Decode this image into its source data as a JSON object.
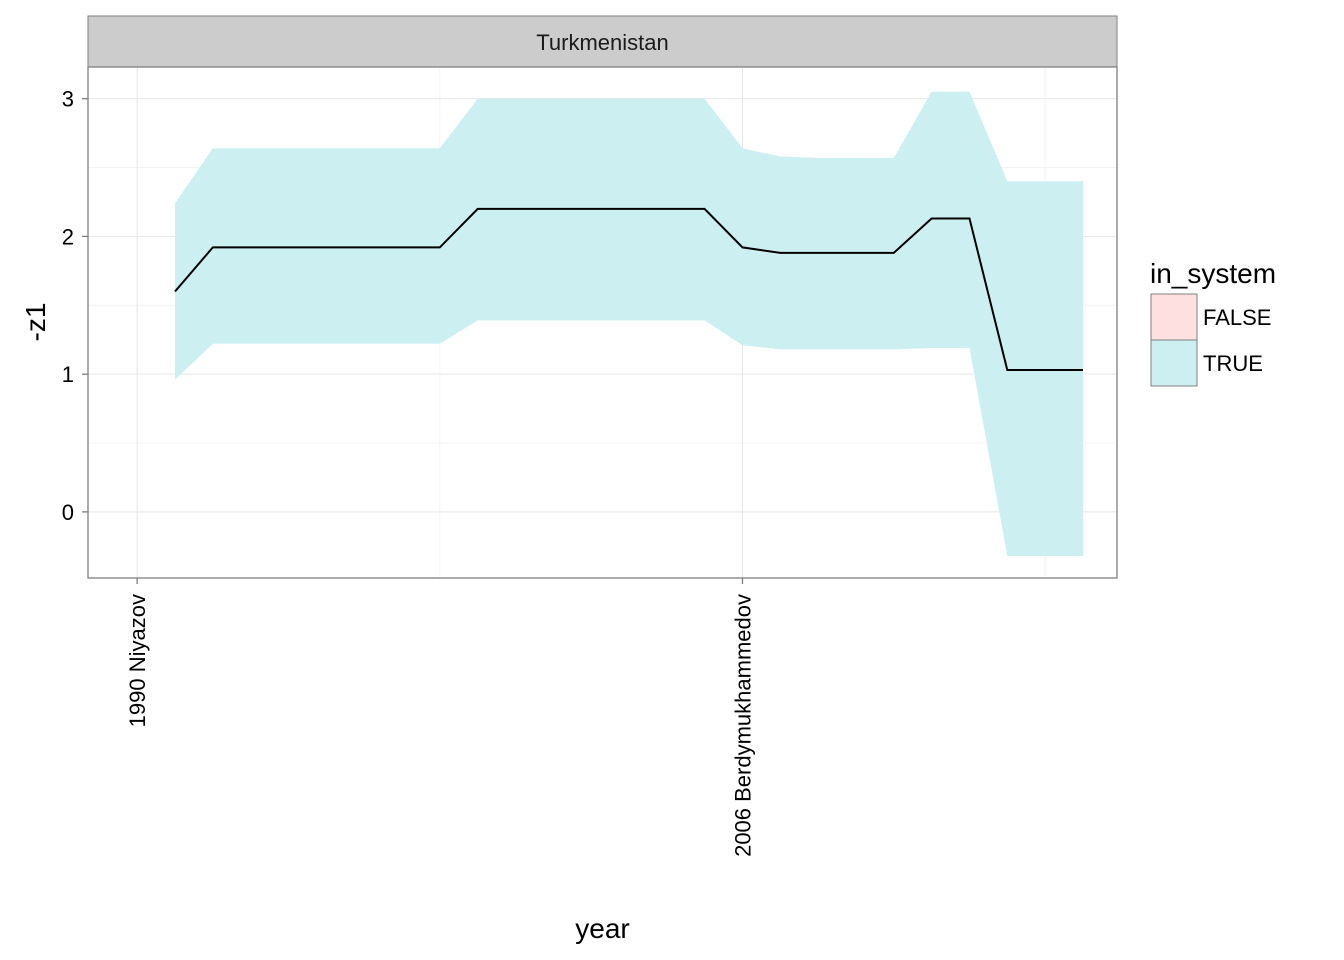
{
  "chart_data": {
    "type": "area",
    "facet": "Turkmenistan",
    "xlabel": "year",
    "ylabel": "-z1",
    "xlim": [
      1988.7,
      2015.9
    ],
    "ylim": [
      -0.48,
      3.23
    ],
    "y_ticks": [
      0,
      1,
      2,
      3
    ],
    "x_ticks": [
      {
        "year": 1990,
        "label": "1990 Niyazov"
      },
      {
        "year": 2006,
        "label": "2006 Berdymukhammedov"
      }
    ],
    "x_minor_grid": [
      1990,
      1998,
      2006,
      2014
    ],
    "y_minor_grid": [
      -0.5,
      0.5,
      1.5,
      2.5
    ],
    "grid": true,
    "series": [
      {
        "name": "TRUE",
        "x": [
          1991,
          1992,
          1993,
          1994,
          1995,
          1996,
          1997,
          1998,
          1999,
          2000,
          2001,
          2002,
          2003,
          2004,
          2005,
          2006,
          2007,
          2008,
          2009,
          2010,
          2011,
          2012,
          2013,
          2014,
          2015
        ],
        "y": [
          1.6,
          1.92,
          1.92,
          1.92,
          1.92,
          1.92,
          1.92,
          1.92,
          2.2,
          2.2,
          2.2,
          2.2,
          2.2,
          2.2,
          2.2,
          1.92,
          1.88,
          1.88,
          1.88,
          1.88,
          2.13,
          2.13,
          1.03,
          1.03,
          1.03
        ],
        "ymin": [
          0.96,
          1.22,
          1.22,
          1.22,
          1.22,
          1.22,
          1.22,
          1.22,
          1.39,
          1.39,
          1.39,
          1.39,
          1.39,
          1.39,
          1.39,
          1.21,
          1.18,
          1.18,
          1.18,
          1.18,
          1.19,
          1.19,
          -0.32,
          -0.32,
          -0.32
        ],
        "ymax": [
          2.24,
          2.64,
          2.64,
          2.64,
          2.64,
          2.64,
          2.64,
          2.64,
          3.0,
          3.0,
          3.0,
          3.0,
          3.0,
          3.0,
          3.0,
          2.64,
          2.58,
          2.57,
          2.57,
          2.57,
          3.05,
          3.05,
          2.4,
          2.4,
          2.4
        ]
      }
    ],
    "legend": {
      "title": "in_system",
      "placement": "right",
      "entries": [
        {
          "label": "FALSE",
          "color": "#ffe0e0"
        },
        {
          "label": "TRUE",
          "color": "#ccf0f2"
        }
      ]
    }
  },
  "colors": {
    "ribbon": "#ccf0f2",
    "line": "#000000",
    "panel_border": "#7f7f7f",
    "grid_major": "#e6e6e6",
    "grid_minor": "#f4f4f4",
    "strip_fill": "#cccccc"
  }
}
